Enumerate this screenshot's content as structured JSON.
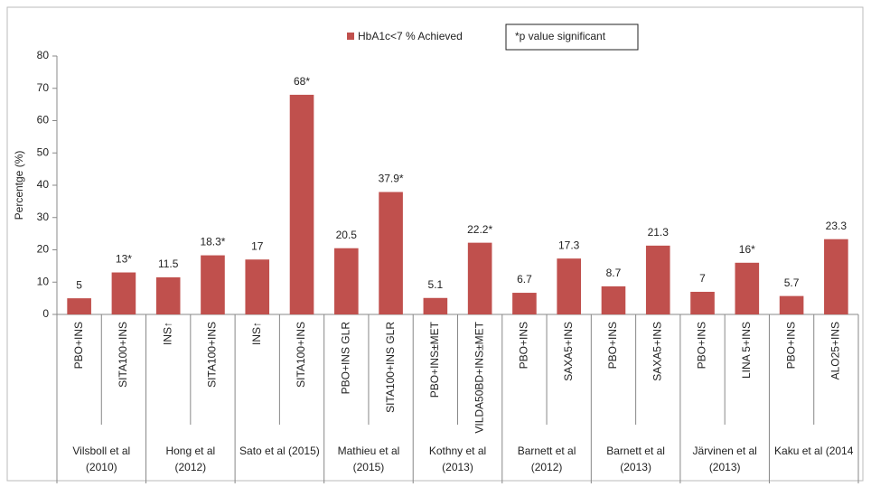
{
  "chart_data": {
    "type": "bar",
    "series_name": "HbA1c<7 % Achieved",
    "color": "#c0504d",
    "annotation": "*p value significant",
    "ylabel": "Percentge (%)",
    "ylim": [
      0,
      80
    ],
    "yticks": [
      0,
      10,
      20,
      30,
      40,
      50,
      60,
      70,
      80
    ],
    "grid": false,
    "groups": [
      {
        "name": [
          "Vilsboll et al",
          "(2010)"
        ],
        "categories": [
          "PBO+INS",
          "SITA100+INS"
        ],
        "values": [
          5,
          13
        ],
        "value_labels": [
          "5",
          "13*"
        ]
      },
      {
        "name": [
          "Hong et al",
          "(2012)"
        ],
        "categories": [
          "INS↑",
          "SITA100+INS"
        ],
        "values": [
          11.5,
          18.3
        ],
        "value_labels": [
          "11.5",
          "18.3*"
        ]
      },
      {
        "name": [
          "Sato et al (2015)"
        ],
        "categories": [
          "INS↑",
          "SITA100+INS"
        ],
        "values": [
          17,
          68
        ],
        "value_labels": [
          "17",
          "68*"
        ]
      },
      {
        "name": [
          "Mathieu  et al",
          "(2015)"
        ],
        "categories": [
          "PBO+INS GLR",
          "SITA100+INS GLR"
        ],
        "values": [
          20.5,
          37.9
        ],
        "value_labels": [
          "20.5",
          "37.9*"
        ]
      },
      {
        "name": [
          "Kothny et al",
          "(2013)"
        ],
        "categories": [
          "PBO+INS±MET",
          "VILDA50BD+INS±MET"
        ],
        "values": [
          5.1,
          22.2
        ],
        "value_labels": [
          "5.1",
          "22.2*"
        ]
      },
      {
        "name": [
          "Barnett et al",
          "(2012)"
        ],
        "categories": [
          "PBO+INS",
          "SAXA5+INS"
        ],
        "values": [
          6.7,
          17.3
        ],
        "value_labels": [
          "6.7",
          "17.3"
        ]
      },
      {
        "name": [
          "Barnett et al",
          "(2013)"
        ],
        "categories": [
          "PBO+INS",
          "SAXA5+INS"
        ],
        "values": [
          8.7,
          21.3
        ],
        "value_labels": [
          "8.7",
          "21.3"
        ]
      },
      {
        "name": [
          "Järvinen et al",
          "(2013)"
        ],
        "categories": [
          "PBO+INS",
          "LINA 5+INS"
        ],
        "values": [
          7,
          16
        ],
        "value_labels": [
          "7",
          "16*"
        ]
      },
      {
        "name": [
          "Kaku et al (2014"
        ],
        "categories": [
          "PBO+INS",
          "ALO25+INS"
        ],
        "values": [
          5.7,
          23.3
        ],
        "value_labels": [
          "5.7",
          "23.3"
        ]
      }
    ]
  }
}
